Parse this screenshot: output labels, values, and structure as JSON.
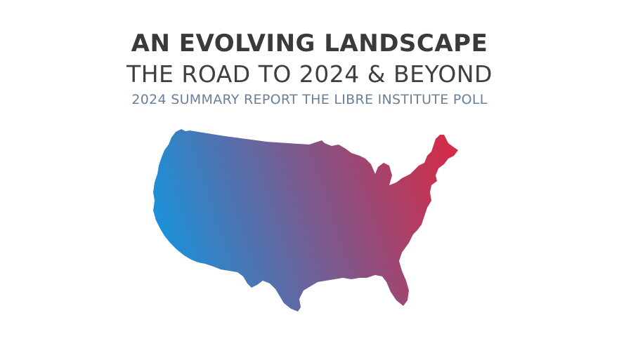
{
  "header": {
    "title": "AN EVOLVING LANDSCAPE",
    "subtitle": "THE ROAD TO 2024 & BEYOND",
    "report_line": "2024 SUMMARY REPORT THE LIBRE INSTITUTE POLL"
  },
  "map": {
    "gradient_start_color": "#1f8fd6",
    "gradient_mid_color": "#7a5a8f",
    "gradient_end_color": "#d62a45"
  }
}
